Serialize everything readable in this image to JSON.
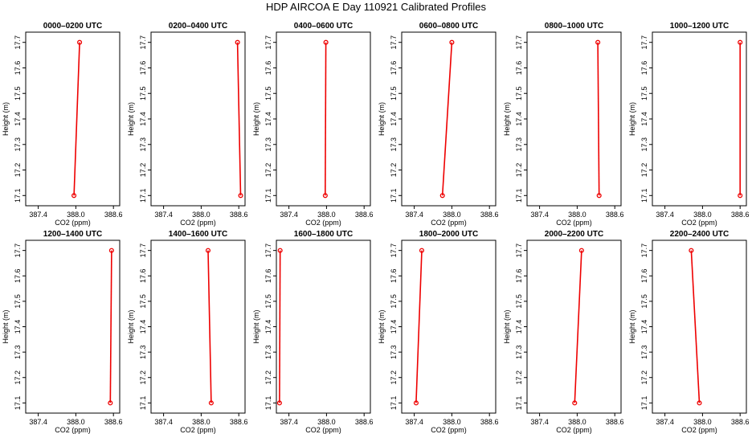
{
  "title": "HDP AIRCOA E  Day 110921  Calibrated Profiles",
  "colors": {
    "series": "#ee0000",
    "axes": "#000000",
    "background": "#ffffff"
  },
  "chart_data": [
    {
      "type": "line",
      "title": "0000–0200 UTC",
      "xlabel": "CO2 (ppm)",
      "ylabel": "Height (m)",
      "xlim": [
        387.2,
        388.7
      ],
      "ylim": [
        17.06,
        17.74
      ],
      "xticks": [
        "387.4",
        "388.0",
        "388.6"
      ],
      "yticks": [
        "17.1",
        "17.2",
        "17.3",
        "17.4",
        "17.5",
        "17.6",
        "17.7"
      ],
      "x": [
        387.97,
        388.06
      ],
      "y": [
        17.1,
        17.7
      ]
    },
    {
      "type": "line",
      "title": "0200–0400 UTC",
      "xlabel": "CO2 (ppm)",
      "ylabel": "Height (m)",
      "xlim": [
        387.2,
        388.7
      ],
      "ylim": [
        17.06,
        17.74
      ],
      "xticks": [
        "387.4",
        "388.0",
        "388.6"
      ],
      "yticks": [
        "17.1",
        "17.2",
        "17.3",
        "17.4",
        "17.5",
        "17.6",
        "17.7"
      ],
      "x": [
        388.63,
        388.58
      ],
      "y": [
        17.1,
        17.7
      ]
    },
    {
      "type": "line",
      "title": "0400–0600 UTC",
      "xlabel": "CO2 (ppm)",
      "ylabel": "Height (m)",
      "xlim": [
        387.2,
        388.7
      ],
      "ylim": [
        17.06,
        17.74
      ],
      "xticks": [
        "387.4",
        "388.0",
        "388.6"
      ],
      "yticks": [
        "17.1",
        "17.2",
        "17.3",
        "17.4",
        "17.5",
        "17.6",
        "17.7"
      ],
      "x": [
        387.98,
        387.99
      ],
      "y": [
        17.1,
        17.7
      ]
    },
    {
      "type": "line",
      "title": "0600–0800 UTC",
      "xlabel": "CO2 (ppm)",
      "ylabel": "Height (m)",
      "xlim": [
        387.2,
        388.7
      ],
      "ylim": [
        17.06,
        17.74
      ],
      "xticks": [
        "387.4",
        "388.0",
        "388.6"
      ],
      "yticks": [
        "17.1",
        "17.2",
        "17.3",
        "17.4",
        "17.5",
        "17.6",
        "17.7"
      ],
      "x": [
        387.85,
        388.0
      ],
      "y": [
        17.1,
        17.7
      ]
    },
    {
      "type": "line",
      "title": "0800–1000 UTC",
      "xlabel": "CO2 (ppm)",
      "ylabel": "Height (m)",
      "xlim": [
        387.2,
        388.7
      ],
      "ylim": [
        17.06,
        17.74
      ],
      "xticks": [
        "387.4",
        "388.0",
        "388.6"
      ],
      "yticks": [
        "17.1",
        "17.2",
        "17.3",
        "17.4",
        "17.5",
        "17.6",
        "17.7"
      ],
      "x": [
        388.35,
        388.33
      ],
      "y": [
        17.1,
        17.7
      ]
    },
    {
      "type": "line",
      "title": "1000–1200 UTC",
      "xlabel": "CO2 (ppm)",
      "ylabel": "Height (m)",
      "xlim": [
        387.2,
        388.7
      ],
      "ylim": [
        17.06,
        17.74
      ],
      "xticks": [
        "387.4",
        "388.0",
        "388.6"
      ],
      "yticks": [
        "17.1",
        "17.2",
        "17.3",
        "17.4",
        "17.5",
        "17.6",
        "17.7"
      ],
      "x": [
        388.6,
        388.6
      ],
      "y": [
        17.1,
        17.7
      ]
    },
    {
      "type": "line",
      "title": "1200–1400 UTC",
      "xlabel": "CO2 (ppm)",
      "ylabel": "Height (m)",
      "xlim": [
        387.2,
        388.7
      ],
      "ylim": [
        17.06,
        17.74
      ],
      "xticks": [
        "387.4",
        "388.0",
        "388.6"
      ],
      "yticks": [
        "17.1",
        "17.2",
        "17.3",
        "17.4",
        "17.5",
        "17.6",
        "17.7"
      ],
      "x": [
        388.55,
        388.57
      ],
      "y": [
        17.1,
        17.7
      ]
    },
    {
      "type": "line",
      "title": "1400–1600 UTC",
      "xlabel": "CO2 (ppm)",
      "ylabel": "Height (m)",
      "xlim": [
        387.2,
        388.7
      ],
      "ylim": [
        17.06,
        17.74
      ],
      "xticks": [
        "387.4",
        "388.0",
        "388.6"
      ],
      "yticks": [
        "17.1",
        "17.2",
        "17.3",
        "17.4",
        "17.5",
        "17.6",
        "17.7"
      ],
      "x": [
        388.16,
        388.11
      ],
      "y": [
        17.1,
        17.7
      ]
    },
    {
      "type": "line",
      "title": "1600–1800 UTC",
      "xlabel": "CO2 (ppm)",
      "ylabel": "Height (m)",
      "xlim": [
        387.2,
        388.7
      ],
      "ylim": [
        17.06,
        17.74
      ],
      "xticks": [
        "387.4",
        "388.0",
        "388.6"
      ],
      "yticks": [
        "17.1",
        "17.2",
        "17.3",
        "17.4",
        "17.5",
        "17.6",
        "17.7"
      ],
      "x": [
        387.25,
        387.26
      ],
      "y": [
        17.1,
        17.7
      ]
    },
    {
      "type": "line",
      "title": "1800–2000 UTC",
      "xlabel": "CO2 (ppm)",
      "ylabel": "Height (m)",
      "xlim": [
        387.2,
        388.7
      ],
      "ylim": [
        17.06,
        17.74
      ],
      "xticks": [
        "387.4",
        "388.0",
        "388.6"
      ],
      "yticks": [
        "17.1",
        "17.2",
        "17.3",
        "17.4",
        "17.5",
        "17.6",
        "17.7"
      ],
      "x": [
        387.43,
        387.52
      ],
      "y": [
        17.1,
        17.7
      ]
    },
    {
      "type": "line",
      "title": "2000–2200 UTC",
      "xlabel": "CO2 (ppm)",
      "ylabel": "Height (m)",
      "xlim": [
        387.2,
        388.7
      ],
      "ylim": [
        17.06,
        17.74
      ],
      "xticks": [
        "387.4",
        "388.0",
        "388.6"
      ],
      "yticks": [
        "17.1",
        "17.2",
        "17.3",
        "17.4",
        "17.5",
        "17.6",
        "17.7"
      ],
      "x": [
        387.96,
        388.07
      ],
      "y": [
        17.1,
        17.7
      ]
    },
    {
      "type": "line",
      "title": "2200–2400 UTC",
      "xlabel": "CO2 (ppm)",
      "ylabel": "Height (m)",
      "xlim": [
        387.2,
        388.7
      ],
      "ylim": [
        17.06,
        17.74
      ],
      "xticks": [
        "387.4",
        "388.0",
        "388.6"
      ],
      "yticks": [
        "17.1",
        "17.2",
        "17.3",
        "17.4",
        "17.5",
        "17.6",
        "17.7"
      ],
      "x": [
        387.95,
        387.82
      ],
      "y": [
        17.1,
        17.7
      ]
    }
  ]
}
